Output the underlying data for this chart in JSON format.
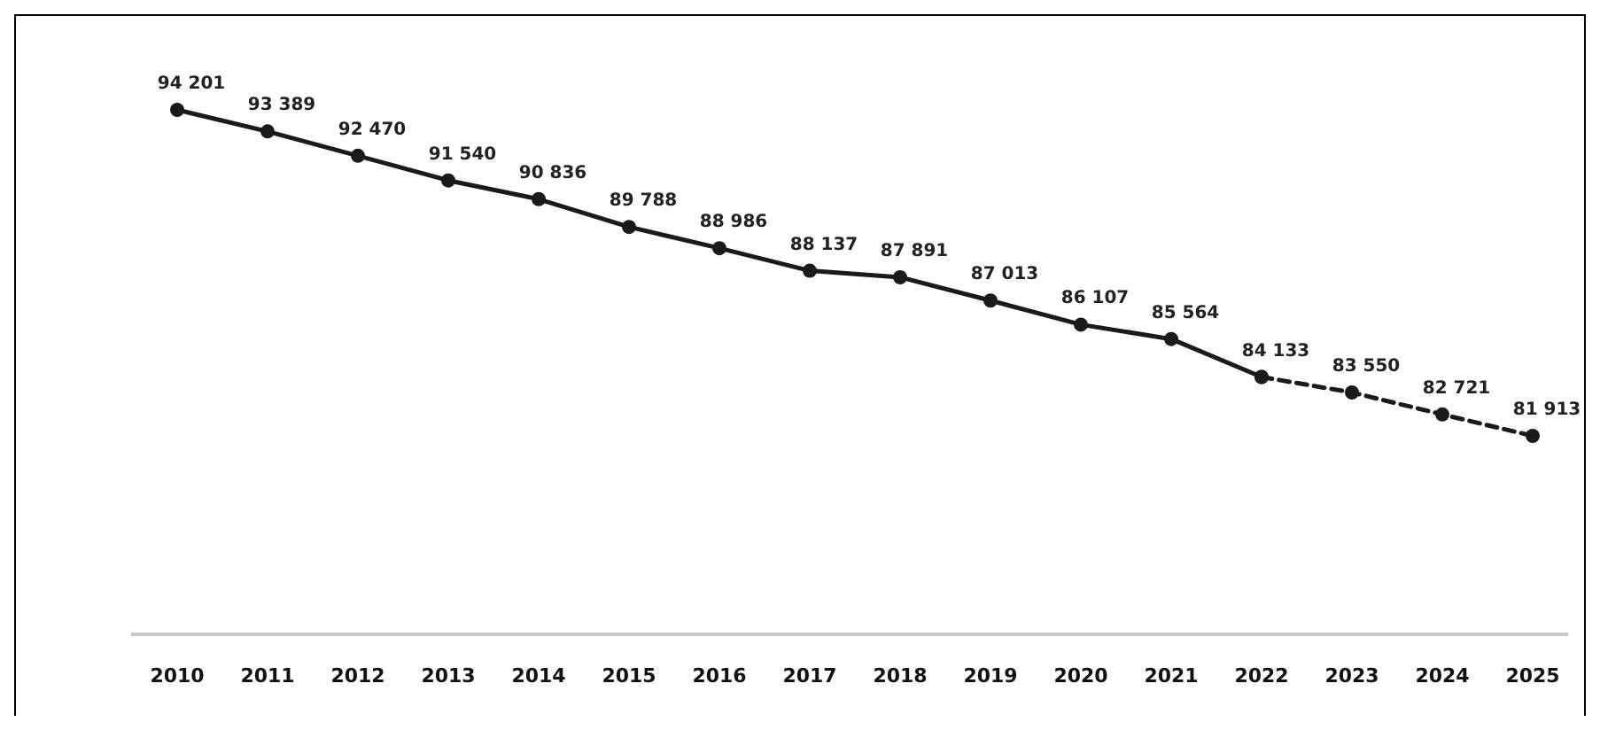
{
  "chart_data": {
    "type": "line",
    "categories": [
      "2010",
      "2011",
      "2012",
      "2013",
      "2014",
      "2015",
      "2016",
      "2017",
      "2018",
      "2019",
      "2020",
      "2021",
      "2022",
      "2023",
      "2024",
      "2025"
    ],
    "series": [
      {
        "color": "#1a1a1a",
        "line_style": "solid",
        "values": [
          94201,
          93389,
          92470,
          91540,
          90836,
          89788,
          88986,
          88137,
          87891,
          87013,
          86107,
          85564,
          84133,
          null,
          null,
          null
        ],
        "value_labels": [
          "94 201",
          "93 389",
          "92 470",
          "91 540",
          "90 836",
          "89 788",
          "88 986",
          "88 137",
          "87 891",
          "87 013",
          "86 107",
          "85 564",
          "84 133",
          null,
          null,
          null
        ]
      },
      {
        "color": "#1a1a1a",
        "line_style": "dashed",
        "values": [
          null,
          null,
          null,
          null,
          null,
          null,
          null,
          null,
          null,
          null,
          null,
          null,
          84133,
          83550,
          82721,
          81913
        ],
        "value_labels": [
          null,
          null,
          null,
          null,
          null,
          null,
          null,
          null,
          null,
          null,
          null,
          null,
          null,
          "83 550",
          "82 721",
          "81 913"
        ]
      }
    ],
    "relative": false,
    "marker": "circle"
  }
}
